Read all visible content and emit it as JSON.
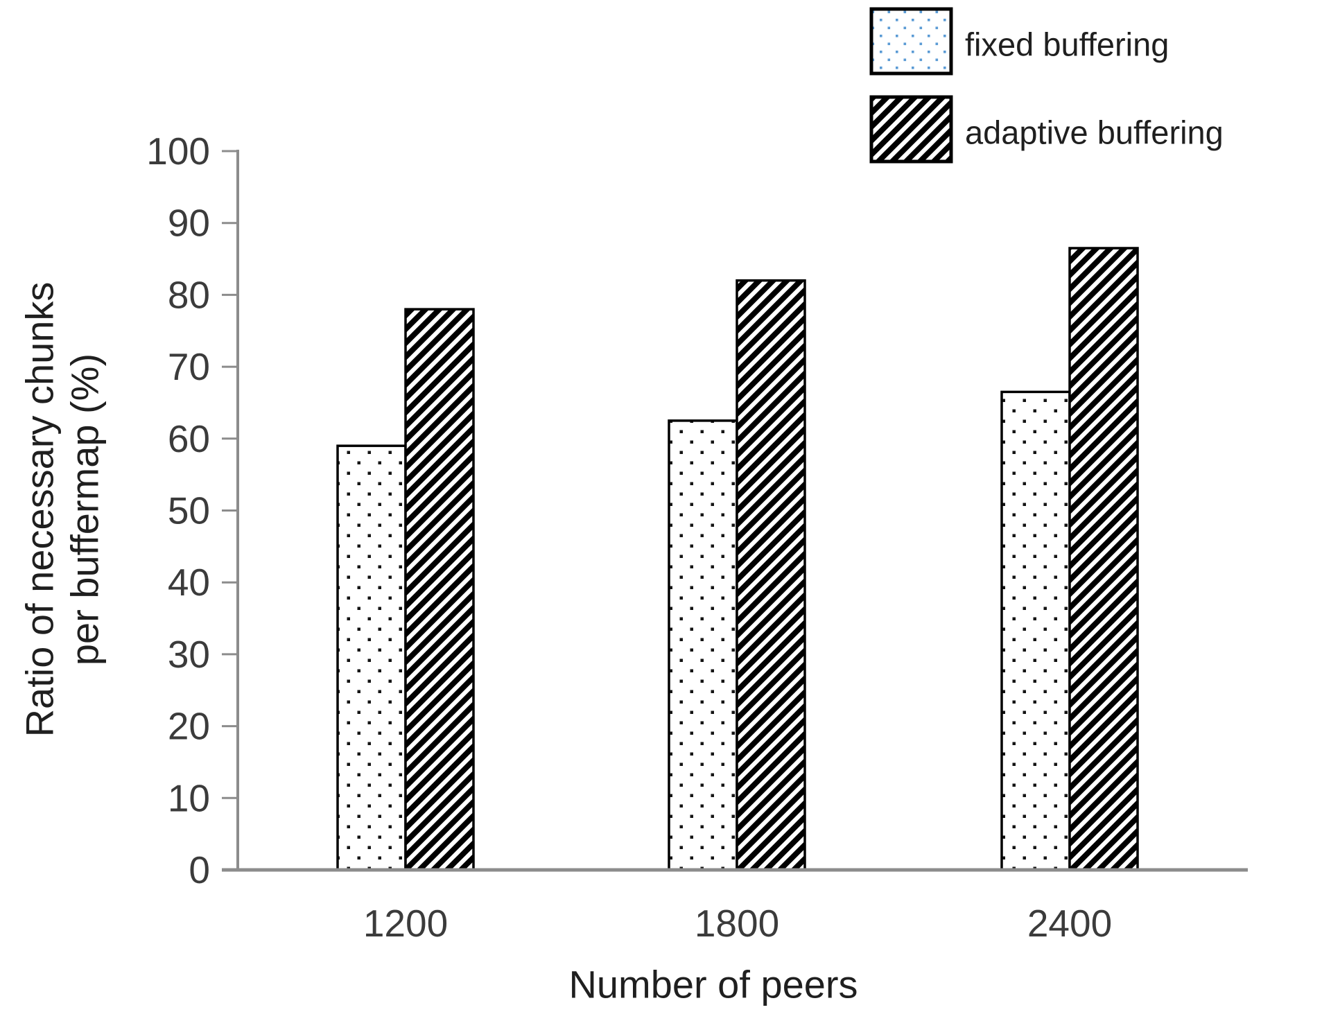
{
  "page": {
    "background": "#ffffff"
  },
  "chart_data": {
    "type": "bar",
    "title": "",
    "categories": [
      "1200",
      "1800",
      "2400"
    ],
    "series": [
      {
        "name": "fixed buffering",
        "values": [
          59,
          62.5,
          66.5
        ],
        "pattern": "dotted",
        "legend_swatch_dot_color": "#5B9BD5"
      },
      {
        "name": "adaptive buffering",
        "values": [
          78,
          82,
          86.5
        ],
        "pattern": "diagonal-hatch",
        "legend_swatch_color": "#000000"
      }
    ],
    "xlabel": "Number of peers",
    "ylabel": "Ratio of necessary chunks per buffermap (%)",
    "ylabel_lines": [
      "Ratio of necessary chunks",
      "per buffermap (%)"
    ],
    "ylim": [
      0,
      100
    ],
    "ytick_step": 10,
    "ytick_labels": [
      "0",
      "10",
      "20",
      "30",
      "40",
      "50",
      "60",
      "70",
      "80",
      "90",
      "100"
    ],
    "grid": false,
    "legend_position": "top-right",
    "colors": {
      "axis_line": "#8c8c8c",
      "tick_label": "#3b3b3b",
      "axis_title": "#1f1f1f",
      "legend_text": "#1f1f1f",
      "bar_border": "#000000",
      "bar_dot": "#141414",
      "hatch": "#000000",
      "legend_dot": "#5B9BD5",
      "background": "#ffffff"
    }
  }
}
